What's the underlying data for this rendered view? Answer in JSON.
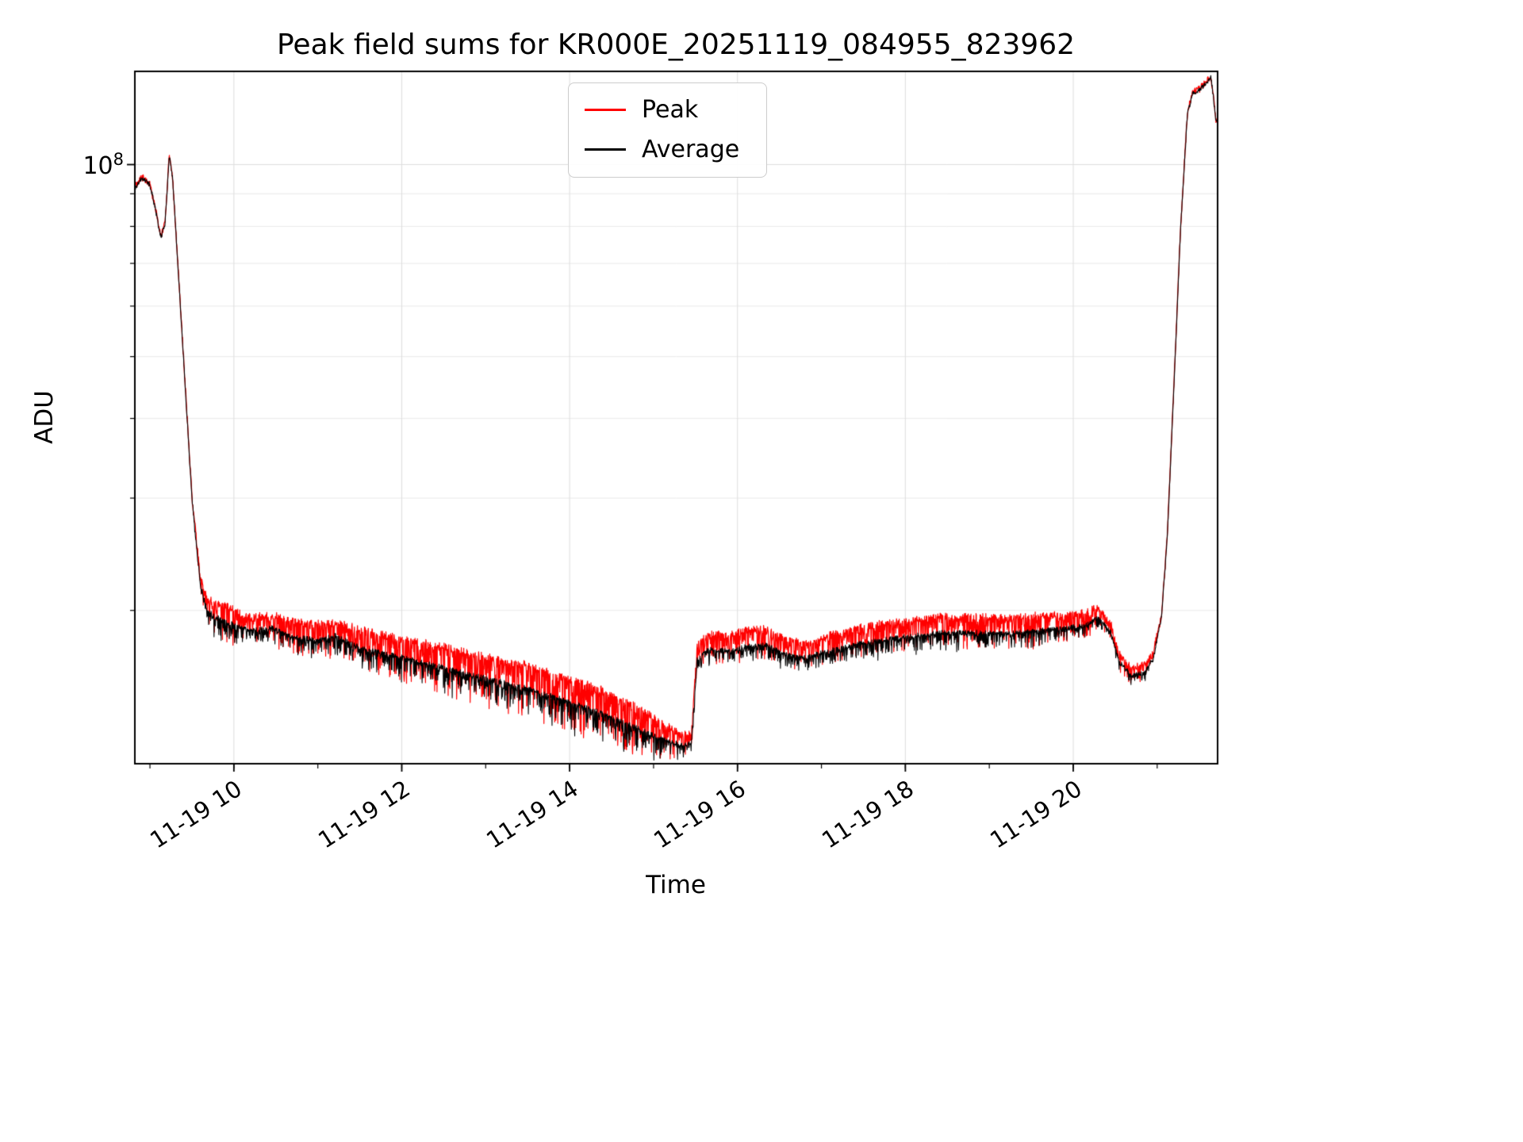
{
  "chart_data": {
    "type": "line",
    "title": "Peak field sums for KR000E_20251119_084955_823962",
    "xlabel": "Time",
    "ylabel": "ADU",
    "yscale": "log",
    "grid": true,
    "xlim_hours": [
      8.82,
      21.72
    ],
    "ylim": [
      11500000,
      140000000
    ],
    "ytick": {
      "base": "10",
      "exp": "8",
      "value": 100000000
    },
    "y_minor_ticks": [
      20000000,
      30000000,
      40000000,
      50000000,
      60000000,
      70000000,
      80000000,
      90000000
    ],
    "x_minor_ticks_hours": [
      9,
      10,
      11,
      12,
      13,
      14,
      15,
      16,
      17,
      18,
      19,
      20,
      21
    ],
    "xticks": [
      {
        "hour": 10,
        "label": "11-19 10"
      },
      {
        "hour": 12,
        "label": "11-19 12"
      },
      {
        "hour": 14,
        "label": "11-19 14"
      },
      {
        "hour": 16,
        "label": "11-19 16"
      },
      {
        "hour": 18,
        "label": "11-19 18"
      },
      {
        "hour": 20,
        "label": "11-19 20"
      }
    ],
    "legend": {
      "position": "upper center"
    },
    "series": [
      {
        "name": "Peak",
        "color": "#ff0000"
      },
      {
        "name": "Average",
        "color": "#000000"
      }
    ],
    "anchor_columns": [
      "hour",
      "average_adu",
      "peak_to_average_ratio",
      "peak_noise_frac",
      "average_noise_frac"
    ],
    "anchors": [
      [
        8.83,
        92000000,
        1.005,
        0.008,
        0.004
      ],
      [
        8.9,
        95500000,
        1.005,
        0.008,
        0.004
      ],
      [
        9.0,
        93000000,
        1.005,
        0.008,
        0.004
      ],
      [
        9.06,
        86000000,
        1.005,
        0.01,
        0.005
      ],
      [
        9.13,
        77000000,
        1.005,
        0.01,
        0.005
      ],
      [
        9.18,
        81000000,
        1.005,
        0.01,
        0.005
      ],
      [
        9.23,
        103500000,
        1.005,
        0.004,
        0.002
      ],
      [
        9.27,
        95000000,
        1.005,
        0.004,
        0.002
      ],
      [
        9.38,
        55000000,
        1.005,
        0.004,
        0.002
      ],
      [
        9.5,
        30000000,
        1.01,
        0.01,
        0.004
      ],
      [
        9.6,
        22000000,
        1.03,
        0.06,
        0.015
      ],
      [
        9.68,
        20000000,
        1.05,
        0.13,
        0.035
      ],
      [
        9.8,
        19500000,
        1.06,
        0.13,
        0.04
      ],
      [
        10.0,
        19000000,
        1.06,
        0.12,
        0.04
      ],
      [
        10.2,
        18600000,
        1.05,
        0.1,
        0.03
      ],
      [
        10.45,
        18800000,
        1.05,
        0.1,
        0.03
      ],
      [
        10.7,
        18200000,
        1.06,
        0.12,
        0.035
      ],
      [
        11.0,
        18000000,
        1.06,
        0.12,
        0.035
      ],
      [
        11.2,
        18300000,
        1.05,
        0.12,
        0.035
      ],
      [
        11.5,
        17500000,
        1.07,
        0.14,
        0.04
      ],
      [
        12.0,
        16900000,
        1.07,
        0.15,
        0.04
      ],
      [
        12.5,
        16300000,
        1.08,
        0.16,
        0.045
      ],
      [
        13.0,
        15700000,
        1.08,
        0.17,
        0.05
      ],
      [
        13.5,
        15100000,
        1.09,
        0.18,
        0.05
      ],
      [
        14.0,
        14400000,
        1.09,
        0.18,
        0.055
      ],
      [
        14.4,
        13800000,
        1.09,
        0.18,
        0.055
      ],
      [
        14.8,
        13100000,
        1.08,
        0.16,
        0.05
      ],
      [
        15.1,
        12600000,
        1.06,
        0.12,
        0.04
      ],
      [
        15.35,
        12300000,
        1.04,
        0.08,
        0.03
      ],
      [
        15.45,
        12400000,
        1.04,
        0.06,
        0.02
      ],
      [
        15.52,
        16800000,
        1.05,
        0.08,
        0.03
      ],
      [
        15.65,
        17400000,
        1.06,
        0.1,
        0.03
      ],
      [
        15.9,
        17300000,
        1.06,
        0.1,
        0.03
      ],
      [
        16.1,
        17600000,
        1.06,
        0.1,
        0.03
      ],
      [
        16.35,
        17700000,
        1.06,
        0.1,
        0.03
      ],
      [
        16.55,
        17100000,
        1.06,
        0.1,
        0.03
      ],
      [
        16.8,
        16900000,
        1.05,
        0.09,
        0.03
      ],
      [
        17.1,
        17300000,
        1.06,
        0.1,
        0.03
      ],
      [
        17.4,
        17700000,
        1.06,
        0.11,
        0.035
      ],
      [
        17.7,
        18000000,
        1.06,
        0.11,
        0.035
      ],
      [
        18.0,
        18200000,
        1.06,
        0.11,
        0.035
      ],
      [
        18.4,
        18500000,
        1.06,
        0.11,
        0.035
      ],
      [
        18.8,
        18500000,
        1.06,
        0.11,
        0.035
      ],
      [
        19.2,
        18400000,
        1.06,
        0.11,
        0.035
      ],
      [
        19.6,
        18600000,
        1.06,
        0.11,
        0.035
      ],
      [
        19.9,
        18800000,
        1.05,
        0.1,
        0.03
      ],
      [
        20.15,
        19000000,
        1.05,
        0.09,
        0.03
      ],
      [
        20.3,
        19500000,
        1.04,
        0.08,
        0.025
      ],
      [
        20.45,
        18500000,
        1.03,
        0.06,
        0.02
      ],
      [
        20.55,
        16600000,
        1.03,
        0.06,
        0.02
      ],
      [
        20.7,
        15800000,
        1.03,
        0.06,
        0.02
      ],
      [
        20.85,
        16000000,
        1.03,
        0.05,
        0.02
      ],
      [
        20.95,
        16800000,
        1.02,
        0.03,
        0.01
      ],
      [
        21.05,
        19500000,
        1.01,
        0.015,
        0.006
      ],
      [
        21.12,
        26000000,
        1.008,
        0.01,
        0.005
      ],
      [
        21.2,
        45000000,
        1.008,
        0.008,
        0.004
      ],
      [
        21.28,
        80000000,
        1.006,
        0.008,
        0.004
      ],
      [
        21.36,
        120000000,
        1.005,
        0.006,
        0.003
      ],
      [
        21.42,
        129000000,
        1.005,
        0.006,
        0.003
      ],
      [
        21.5,
        131000000,
        1.005,
        0.006,
        0.003
      ],
      [
        21.58,
        134000000,
        1.005,
        0.004,
        0.002
      ],
      [
        21.64,
        137000000,
        1.004,
        0.004,
        0.002
      ],
      [
        21.66,
        131000000,
        1.003,
        0.003,
        0.002
      ],
      [
        21.7,
        117000000,
        1.003,
        0.003,
        0.002
      ]
    ]
  }
}
